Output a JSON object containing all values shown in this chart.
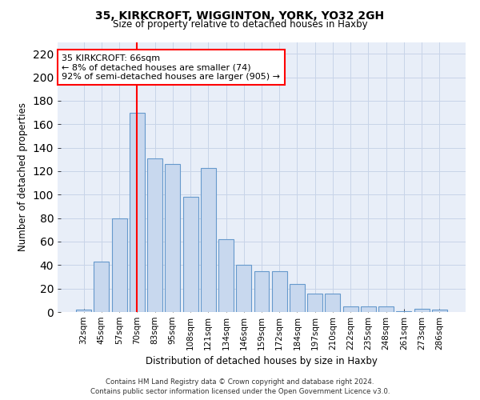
{
  "title1": "35, KIRKCROFT, WIGGINTON, YORK, YO32 2GH",
  "title2": "Size of property relative to detached houses in Haxby",
  "xlabel": "Distribution of detached houses by size in Haxby",
  "ylabel": "Number of detached properties",
  "categories": [
    "32sqm",
    "45sqm",
    "57sqm",
    "70sqm",
    "83sqm",
    "95sqm",
    "108sqm",
    "121sqm",
    "134sqm",
    "146sqm",
    "159sqm",
    "172sqm",
    "184sqm",
    "197sqm",
    "210sqm",
    "222sqm",
    "235sqm",
    "248sqm",
    "261sqm",
    "273sqm",
    "286sqm"
  ],
  "values": [
    2,
    43,
    80,
    170,
    131,
    126,
    98,
    123,
    62,
    40,
    35,
    35,
    24,
    16,
    16,
    5,
    5,
    5,
    1,
    3,
    2
  ],
  "bar_color": "#c8d8ee",
  "bar_edge_color": "#6699cc",
  "vline_x_index": 3,
  "vline_color": "red",
  "annotation_line1": "35 KIRKCROFT: 66sqm",
  "annotation_line2": "← 8% of detached houses are smaller (74)",
  "annotation_line3": "92% of semi-detached houses are larger (905) →",
  "annotation_box_color": "white",
  "annotation_box_edge_color": "red",
  "ylim": [
    0,
    230
  ],
  "yticks": [
    0,
    20,
    40,
    60,
    80,
    100,
    120,
    140,
    160,
    180,
    200,
    220
  ],
  "footnote1": "Contains HM Land Registry data © Crown copyright and database right 2024.",
  "footnote2": "Contains public sector information licensed under the Open Government Licence v3.0.",
  "grid_color": "#c8d4e8",
  "background_color": "#e8eef8"
}
